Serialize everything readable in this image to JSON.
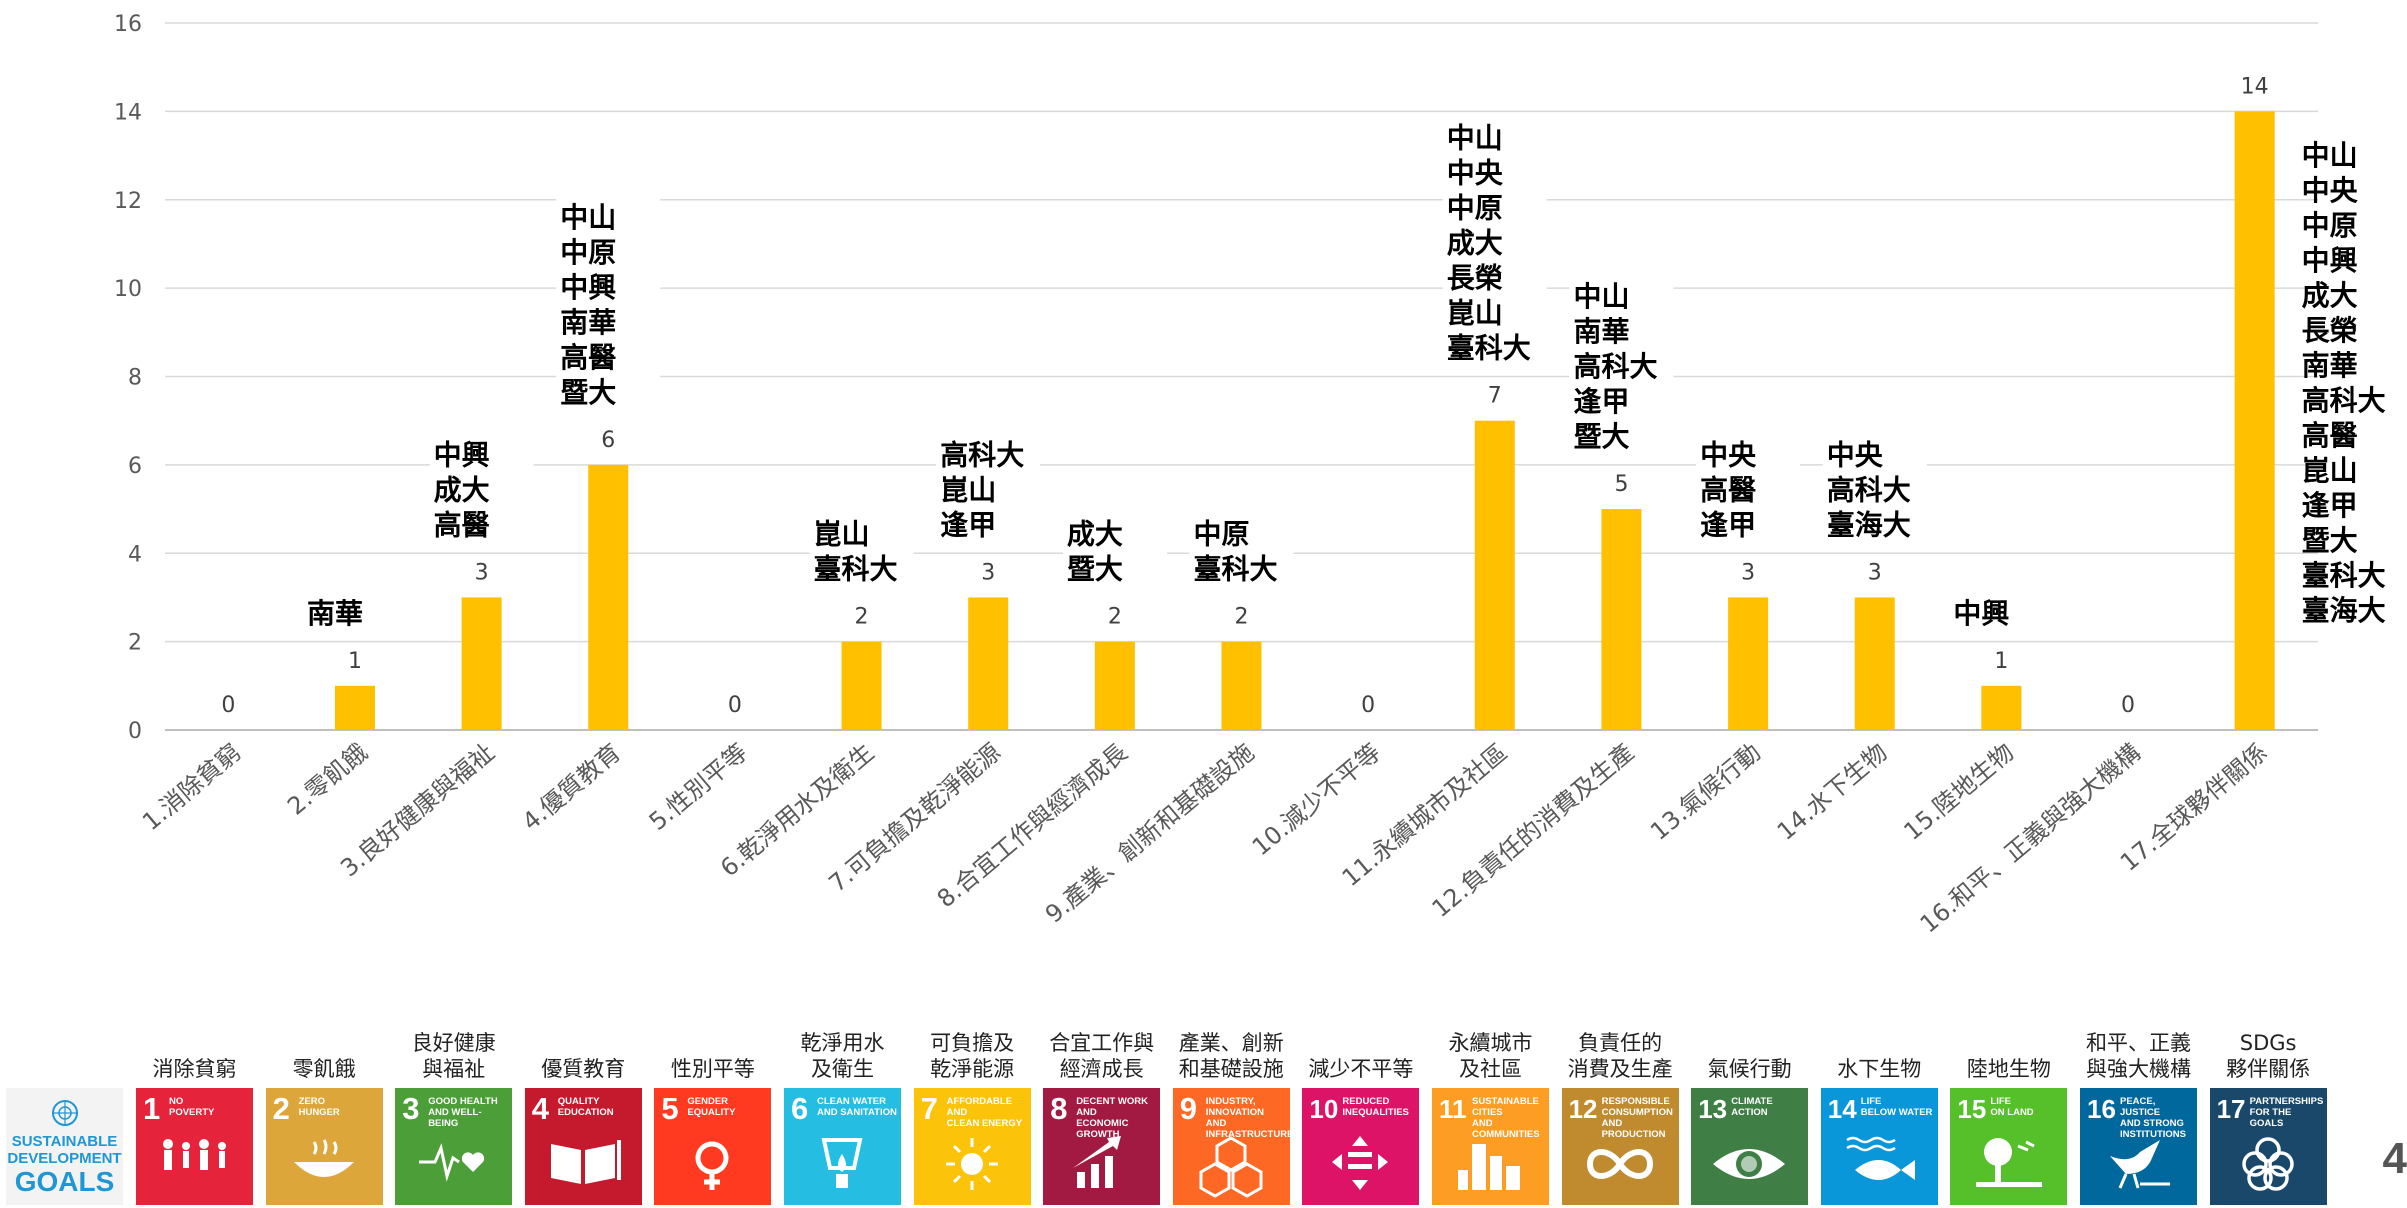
{
  "chart_data": {
    "type": "bar",
    "categories": [
      "1.消除貧窮",
      "2.零飢餓",
      "3.良好健康與福祉",
      "4.優質教育",
      "5.性別平等",
      "6.乾淨用水及衛生",
      "7.可負擔及乾淨能源",
      "8.合宜工作與經濟成長",
      "9.產業、創新和基礎設施",
      "10.減少不平等",
      "11.永續城市及社區",
      "12.負責任的消費及生產",
      "13.氣候行動",
      "14.水下生物",
      "15.陸地生物",
      "16.和平、正義與強大機構",
      "17.全球夥伴關係"
    ],
    "values": [
      0,
      1,
      3,
      6,
      0,
      2,
      3,
      2,
      2,
      0,
      7,
      5,
      3,
      3,
      1,
      0,
      14
    ],
    "universities": [
      [],
      [
        "南華"
      ],
      [
        "中興",
        "成大",
        "高醫"
      ],
      [
        "中山",
        "中原",
        "中興",
        "南華",
        "高醫",
        "暨大"
      ],
      [],
      [
        "崑山",
        "臺科大"
      ],
      [
        "高科大",
        "崑山",
        "逢甲"
      ],
      [
        "成大",
        "暨大"
      ],
      [
        "中原",
        "臺科大"
      ],
      [],
      [
        "中山",
        "中央",
        "中原",
        "成大",
        "長榮",
        "崑山",
        "臺科大"
      ],
      [
        "中山",
        "南華",
        "高科大",
        "逢甲",
        "暨大"
      ],
      [
        "中央",
        "高醫",
        "逢甲"
      ],
      [
        "中央",
        "高科大",
        "臺海大"
      ],
      [
        "中興"
      ],
      [],
      [
        "中山",
        "中央",
        "中原",
        "中興",
        "成大",
        "長榮",
        "南華",
        "高科大",
        "高醫",
        "崑山",
        "逢甲",
        "暨大",
        "臺科大",
        "臺海大"
      ]
    ],
    "title": "",
    "xlabel": "",
    "ylabel": "",
    "ylim": [
      0,
      16
    ],
    "yticks": [
      0,
      2,
      4,
      6,
      8,
      10,
      12,
      14,
      16
    ],
    "grid": true,
    "bar_color": "#ffc000"
  },
  "sdg_strip": {
    "logo": {
      "line1": "SUSTAINABLE",
      "line2": "DEVELOPMENT",
      "line3": "GOALS"
    },
    "goals": [
      {
        "zh": "消除貧窮",
        "num": "1",
        "en": "NO\nPOVERTY",
        "color": "#e5243b",
        "icon": "people-icon"
      },
      {
        "zh": "零飢餓",
        "num": "2",
        "en": "ZERO\nHUNGER",
        "color": "#dda63a",
        "icon": "bowl-icon"
      },
      {
        "zh": "良好健康\n與福祉",
        "num": "3",
        "en": "GOOD HEALTH\nAND WELL-BEING",
        "color": "#4c9f38",
        "icon": "heartbeat-icon"
      },
      {
        "zh": "優質教育",
        "num": "4",
        "en": "QUALITY\nEDUCATION",
        "color": "#c5192d",
        "icon": "book-icon"
      },
      {
        "zh": "性別平等",
        "num": "5",
        "en": "GENDER\nEQUALITY",
        "color": "#ff3a21",
        "icon": "gender-icon"
      },
      {
        "zh": "乾淨用水\n及衛生",
        "num": "6",
        "en": "CLEAN WATER\nAND SANITATION",
        "color": "#26bde2",
        "icon": "water-drop-icon"
      },
      {
        "zh": "可負擔及\n乾淨能源",
        "num": "7",
        "en": "AFFORDABLE AND\nCLEAN ENERGY",
        "color": "#fcc30b",
        "icon": "sun-icon"
      },
      {
        "zh": "合宜工作與\n經濟成長",
        "num": "8",
        "en": "DECENT WORK AND\nECONOMIC GROWTH",
        "color": "#a21942",
        "icon": "growth-chart-icon"
      },
      {
        "zh": "產業、創新\n和基礎設施",
        "num": "9",
        "en": "INDUSTRY, INNOVATION\nAND INFRASTRUCTURE",
        "color": "#fd6925",
        "icon": "cubes-icon"
      },
      {
        "zh": "減少不平等",
        "num": "10",
        "en": "REDUCED\nINEQUALITIES",
        "color": "#dd1367",
        "icon": "equality-icon"
      },
      {
        "zh": "永續城市\n及社區",
        "num": "11",
        "en": "SUSTAINABLE CITIES\nAND COMMUNITIES",
        "color": "#fd9d24",
        "icon": "city-icon"
      },
      {
        "zh": "負責任的\n消費及生產",
        "num": "12",
        "en": "RESPONSIBLE\nCONSUMPTION\nAND PRODUCTION",
        "color": "#bf8b2e",
        "icon": "infinity-icon"
      },
      {
        "zh": "氣候行動",
        "num": "13",
        "en": "CLIMATE\nACTION",
        "color": "#3f7e44",
        "icon": "eye-globe-icon"
      },
      {
        "zh": "水下生物",
        "num": "14",
        "en": "LIFE\nBELOW WATER",
        "color": "#0a97d9",
        "icon": "fish-icon"
      },
      {
        "zh": "陸地生物",
        "num": "15",
        "en": "LIFE\nON LAND",
        "color": "#56c02b",
        "icon": "tree-icon"
      },
      {
        "zh": "和平、正義\n與強大機構",
        "num": "16",
        "en": "PEACE, JUSTICE\nAND STRONG\nINSTITUTIONS",
        "color": "#00689d",
        "icon": "dove-icon"
      },
      {
        "zh": "SDGs\n夥伴關係",
        "num": "17",
        "en": "PARTNERSHIPS\nFOR THE GOALS",
        "color": "#19486a",
        "icon": "rings-icon"
      }
    ]
  },
  "page_number": "4"
}
